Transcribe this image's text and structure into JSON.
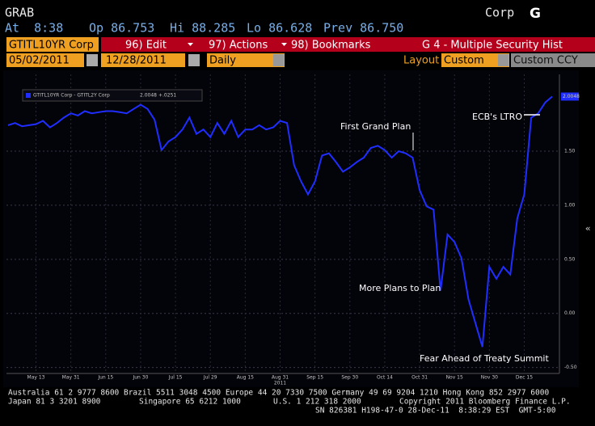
{
  "header": {
    "title": "GRAB",
    "right": "Corp",
    "logo": "G"
  },
  "quote": [
    "At  8:38",
    "Op 86.753",
    "Hi 88.285",
    "Lo 86.628",
    "Prev 86.750"
  ],
  "toolbar": {
    "security": "GTITL10YR Corp",
    "edit": "96) Edit",
    "actions": "97) Actions",
    "bookmarks": "98) Bookmarks",
    "function": "G 4 - Multiple Security Hist"
  },
  "controls": {
    "start": "05/02/2011",
    "end": "12/28/2011",
    "period": "Daily",
    "layout_label": "Layout",
    "layout": "Custom",
    "currency": "Custom CCY"
  },
  "chart_data": {
    "type": "line",
    "series": [
      {
        "name": "GTITL10YR Corp - GTITL2Y Corp",
        "color": "#1f2eff",
        "change": "+.0251",
        "values": [
          1.74,
          1.76,
          1.73,
          1.74,
          1.75,
          1.78,
          1.72,
          1.76,
          1.81,
          1.85,
          1.83,
          1.87,
          1.85,
          1.86,
          1.87,
          1.87,
          1.86,
          1.85,
          1.89,
          1.93,
          1.89,
          1.79,
          1.51,
          1.59,
          1.63,
          1.7,
          1.81,
          1.66,
          1.7,
          1.63,
          1.76,
          1.66,
          1.78,
          1.63,
          1.7,
          1.7,
          1.74,
          1.7,
          1.72,
          1.78,
          1.76,
          1.37,
          1.22,
          1.1,
          1.22,
          1.46,
          1.48,
          1.4,
          1.31,
          1.35,
          1.4,
          1.44,
          1.53,
          1.55,
          1.51,
          1.44,
          1.5,
          1.48,
          1.44,
          1.14,
          0.99,
          0.96,
          0.21,
          0.73,
          0.66,
          0.51,
          0.13,
          -0.09,
          -0.31,
          0.43,
          0.32,
          0.43,
          0.36,
          0.88,
          1.1,
          1.81,
          1.85,
          1.95,
          2.0048
        ]
      }
    ],
    "categories": [
      null,
      null,
      null,
      null,
      "May 13",
      null,
      null,
      null,
      null,
      "May 31",
      null,
      null,
      null,
      null,
      "Jun 15",
      null,
      null,
      null,
      null,
      "Jun 30",
      null,
      null,
      null,
      null,
      "Jul 15",
      null,
      null,
      null,
      null,
      "Jul 29",
      null,
      null,
      null,
      null,
      "Aug 15",
      null,
      null,
      null,
      null,
      "Aug 31",
      null,
      null,
      null,
      null,
      "Sep 15",
      null,
      null,
      null,
      null,
      "Sep 30",
      null,
      null,
      null,
      null,
      "Oct 14",
      null,
      null,
      null,
      null,
      "Oct 31",
      null,
      null,
      null,
      null,
      "Nov 15",
      null,
      null,
      null,
      null,
      "Nov 30",
      null,
      null,
      null,
      null,
      "Dec 15",
      null,
      null,
      null,
      null
    ],
    "x_year_label": "2011",
    "ylim": [
      -0.54,
      2.21
    ],
    "yticks": [
      {
        "value": 1.5,
        "label": "1.50"
      },
      {
        "value": 1,
        "label": "1.00"
      },
      {
        "value": 0.5,
        "label": "0.50"
      },
      {
        "value": 0,
        "label": "0.00"
      },
      {
        "value": -0.5,
        "label": "-0.50"
      }
    ],
    "grid": true,
    "annotations": [
      "First Grand Plan",
      "ECB's LTRO",
      "More Plans to Plan",
      "Fear Ahead of Treaty Summit"
    ]
  },
  "footer": {
    "line1": "Australia 61 2 9777 8600 Brazil 5511 3048 4500 Europe 44 20 7330 7500 Germany 49 69 9204 1210 Hong Kong 852 2977 6000",
    "line2": [
      "Japan 81 3 3201 8900",
      "Singapore 65 6212 1000",
      "U.S. 1 212 318 2000",
      "Copyright 2011 Bloomberg Finance L.P."
    ],
    "line3": "SN 826381 H198-47-0 28-Dec-11  8:38:29 EST  GMT-5:00"
  }
}
